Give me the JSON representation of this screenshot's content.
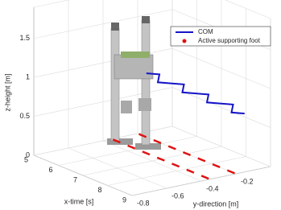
{
  "chart_data": {
    "type": "line3d",
    "xlabel": "x-time [s]",
    "ylabel": "y-direction [m]",
    "zlabel": "z-height [m]",
    "xlim": [
      5,
      9
    ],
    "ylim": [
      -0.8,
      0
    ],
    "zlim": [
      0,
      1.9
    ],
    "xticks": [
      5,
      6,
      7,
      8,
      9
    ],
    "yticks": [
      -0.8,
      -0.6,
      -0.4,
      -0.2
    ],
    "zticks": [
      0,
      0.5,
      1,
      1.5
    ],
    "grid": true,
    "legend": "upper right",
    "series": [
      {
        "name": "COM",
        "color": "#1414c8",
        "style": "line",
        "x": [
          5,
          5.25,
          5.5,
          5.75,
          6,
          6.25,
          6.5,
          6.75,
          7,
          7.25,
          7.5,
          7.75,
          8,
          8.25,
          8.5,
          8.75,
          9
        ],
        "y": [
          -0.15,
          -0.11,
          -0.15,
          -0.19,
          -0.15,
          -0.11,
          -0.15,
          -0.19,
          -0.15,
          -0.11,
          -0.15,
          -0.19,
          -0.15,
          -0.11,
          -0.15,
          -0.19,
          -0.15
        ],
        "z": [
          0.75,
          0.75,
          0.75,
          0.75,
          0.75,
          0.75,
          0.75,
          0.75,
          0.75,
          0.75,
          0.75,
          0.75,
          0.75,
          0.75,
          0.75,
          0.75,
          0.75
        ]
      },
      {
        "name": "Active supporting foot",
        "color": "#e01010",
        "style": "marker",
        "x": [
          5.2,
          5.8,
          6.4,
          7.0,
          7.6,
          8.2,
          8.8,
          5.2,
          5.8,
          6.4,
          7.0,
          7.6,
          8.2,
          8.8
        ],
        "y": [
          -0.35,
          -0.35,
          -0.35,
          -0.35,
          -0.35,
          -0.35,
          -0.35,
          -0.2,
          -0.2,
          -0.2,
          -0.2,
          -0.2,
          -0.2,
          -0.2
        ],
        "z": [
          0,
          0,
          0,
          0,
          0,
          0,
          0,
          0,
          0,
          0,
          0,
          0,
          0,
          0
        ]
      }
    ]
  }
}
